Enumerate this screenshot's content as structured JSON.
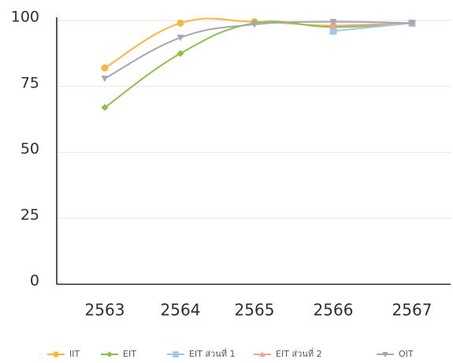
{
  "chart_data": {
    "type": "line",
    "title": "",
    "xlabel": "",
    "ylabel": "",
    "categories": [
      "2563",
      "2564",
      "2565",
      "2566",
      "2567"
    ],
    "ylim": [
      0,
      100
    ],
    "yticks": [
      0,
      25,
      50,
      75,
      100
    ],
    "grid": true,
    "legend": "bottom",
    "series": [
      {
        "name": "IIT",
        "color": "#f5b642",
        "marker": "circle",
        "values": [
          82,
          99,
          99.5,
          98,
          99
        ]
      },
      {
        "name": "EIT",
        "color": "#8dc14b",
        "marker": "diamond",
        "values": [
          67,
          87.5,
          99,
          97.5,
          99
        ]
      },
      {
        "name": "EIT ส่วนที่ 1",
        "color": "#9fc7ea",
        "marker": "square",
        "values": [
          null,
          null,
          null,
          96,
          99
        ]
      },
      {
        "name": "EIT ส่วนที่ 2",
        "color": "#f0a58f",
        "marker": "triangle",
        "values": [
          null,
          null,
          null,
          98,
          99
        ]
      },
      {
        "name": "OIT",
        "color": "#a6a5b3",
        "marker": "triangle-down",
        "values": [
          78,
          93.5,
          98.5,
          99.5,
          99
        ]
      }
    ]
  }
}
